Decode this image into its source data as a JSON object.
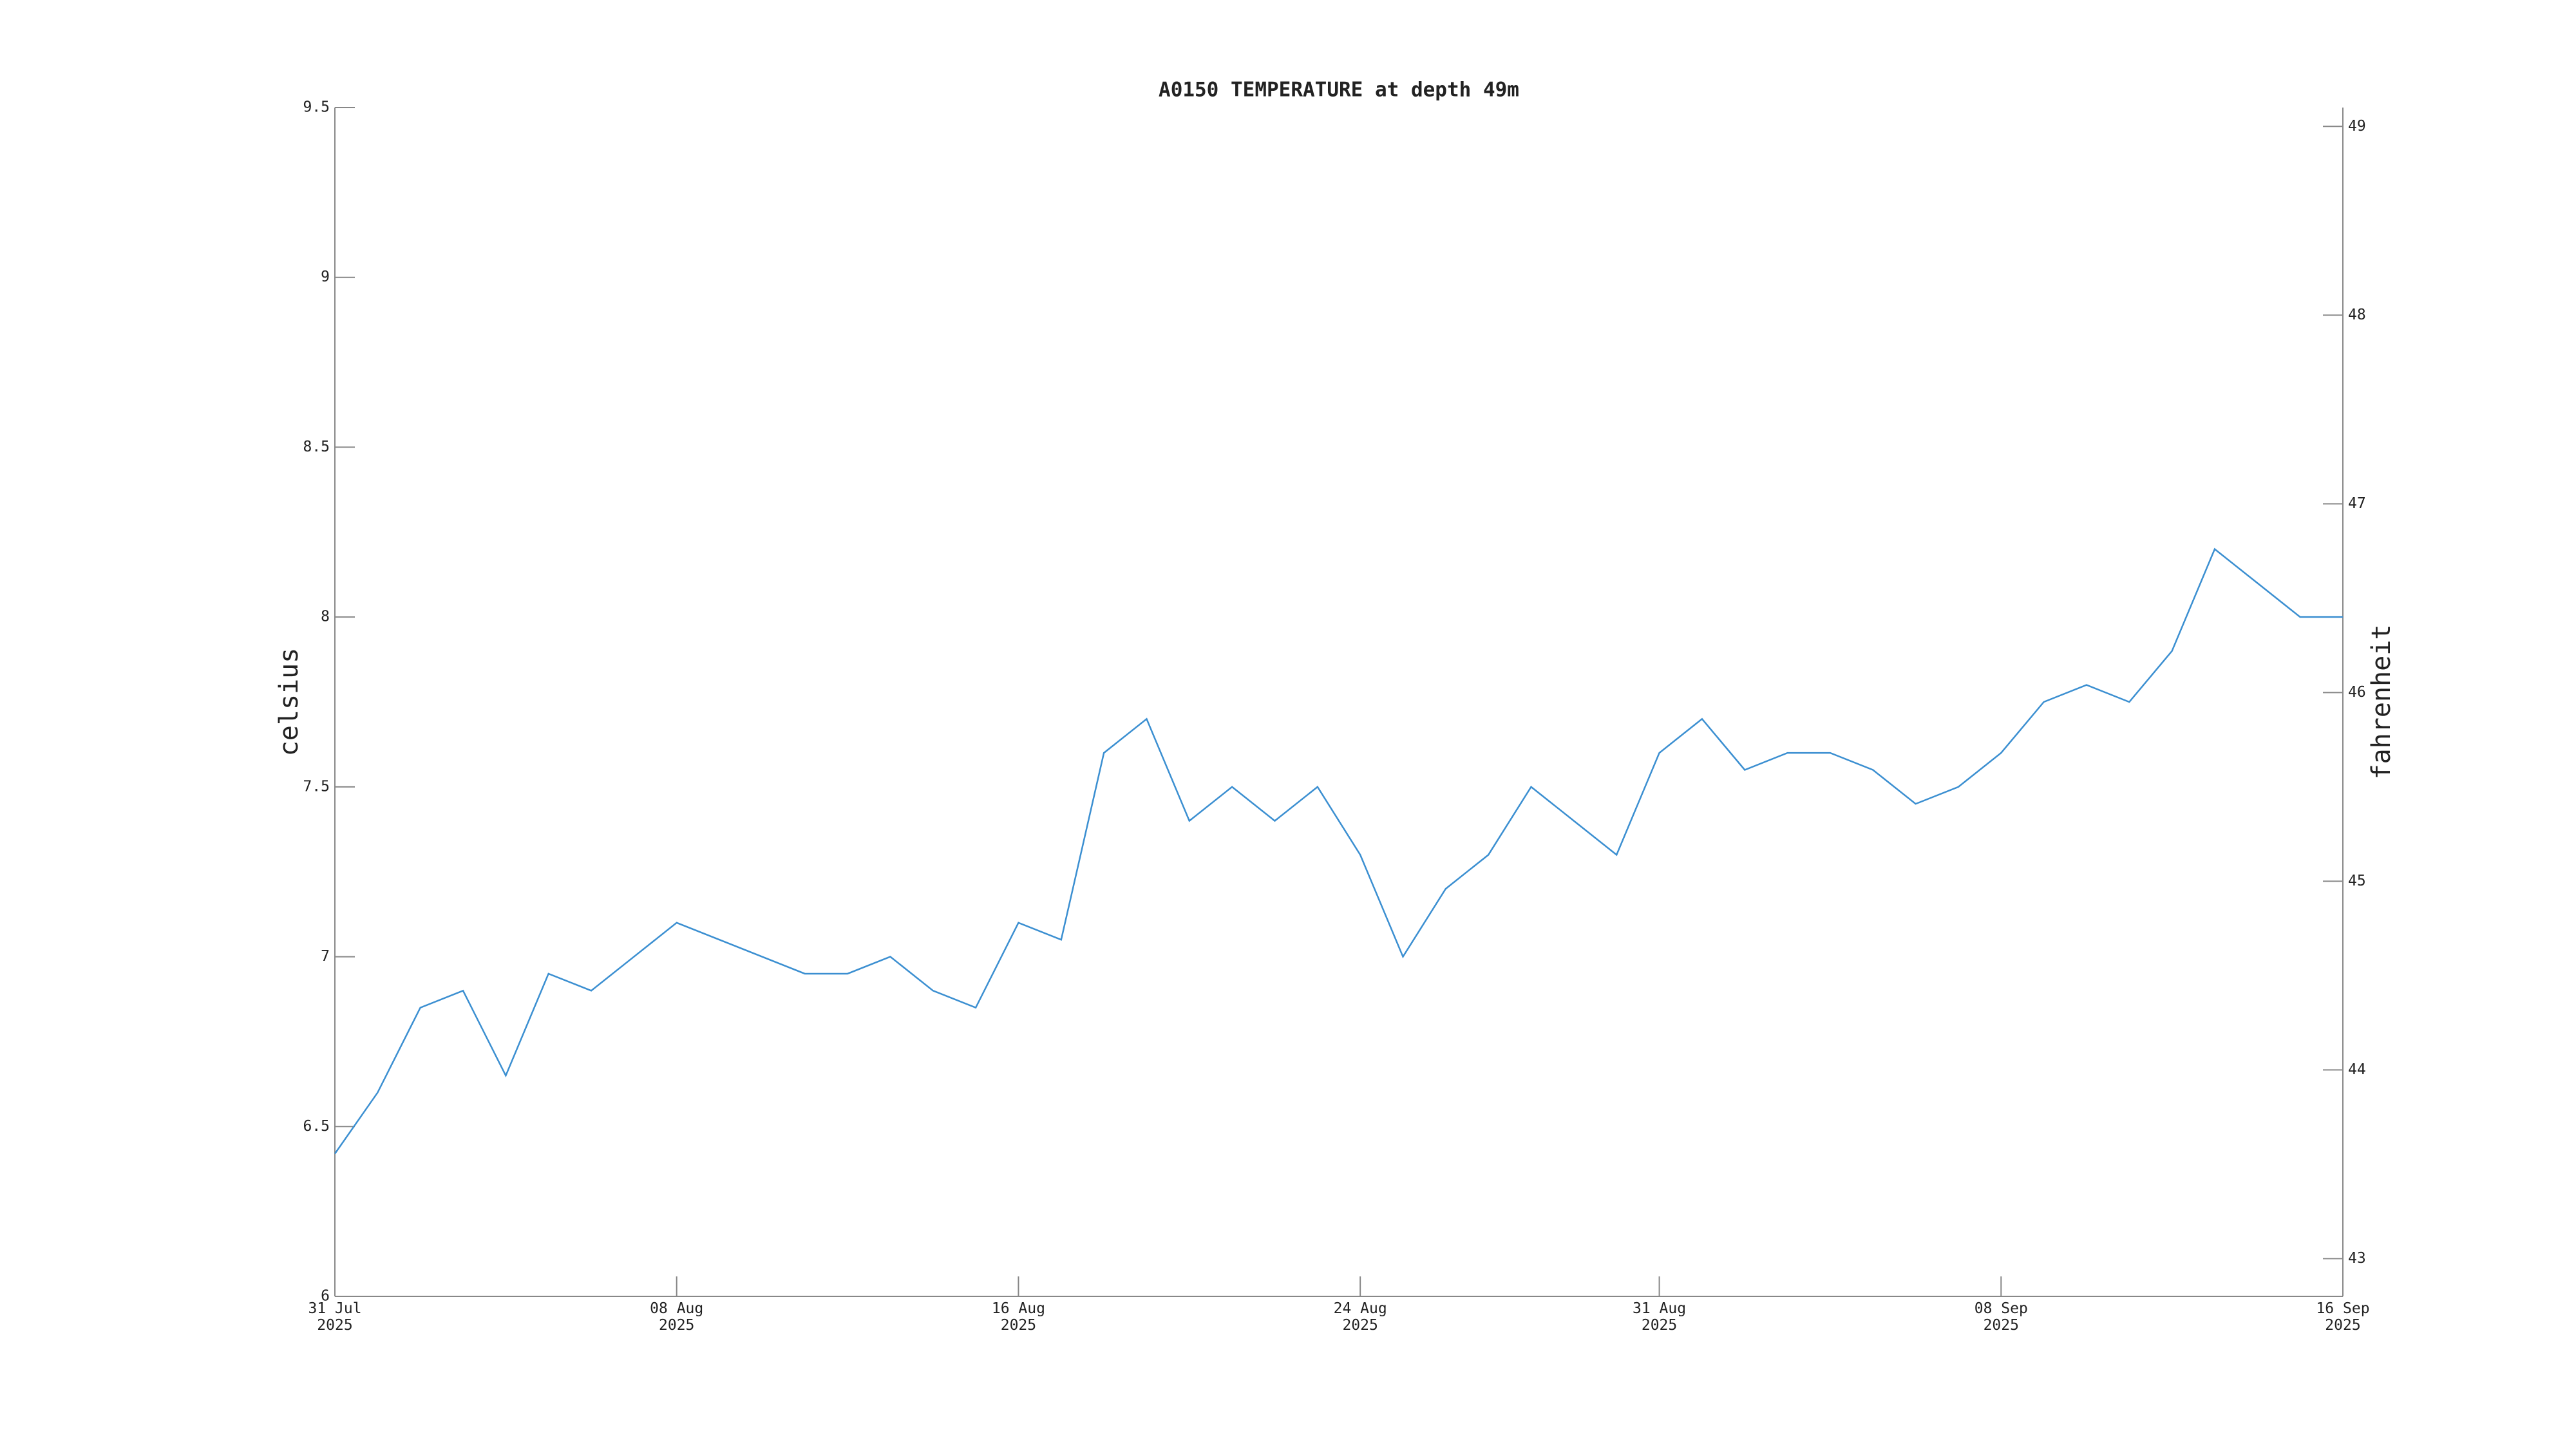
{
  "chart_data": {
    "type": "line",
    "title": "A0150 TEMPERATURE at depth 49m",
    "ylabel": "celsius",
    "y2label": "fahrenheit",
    "color": "#3b8fd1",
    "x": [
      "2025-07-31",
      "2025-08-01",
      "2025-08-02",
      "2025-08-03",
      "2025-08-04",
      "2025-08-05",
      "2025-08-06",
      "2025-08-07",
      "2025-08-08",
      "2025-08-09",
      "2025-08-10",
      "2025-08-11",
      "2025-08-12",
      "2025-08-13",
      "2025-08-14",
      "2025-08-15",
      "2025-08-16",
      "2025-08-17",
      "2025-08-18",
      "2025-08-19",
      "2025-08-20",
      "2025-08-21",
      "2025-08-22",
      "2025-08-23",
      "2025-08-24",
      "2025-08-25",
      "2025-08-26",
      "2025-08-27",
      "2025-08-28",
      "2025-08-29",
      "2025-08-30",
      "2025-08-31",
      "2025-09-01",
      "2025-09-02",
      "2025-09-03",
      "2025-09-04",
      "2025-09-05",
      "2025-09-06",
      "2025-09-07",
      "2025-09-08",
      "2025-09-09",
      "2025-09-10",
      "2025-09-11",
      "2025-09-12",
      "2025-09-13",
      "2025-09-14",
      "2025-09-15",
      "2025-09-16"
    ],
    "values": [
      6.42,
      6.6,
      6.85,
      6.9,
      6.65,
      6.95,
      6.9,
      7.0,
      7.1,
      7.05,
      7.0,
      6.95,
      6.95,
      7.0,
      6.9,
      6.85,
      7.1,
      7.05,
      7.6,
      7.7,
      7.4,
      7.5,
      7.4,
      7.5,
      7.3,
      7.0,
      7.2,
      7.3,
      7.5,
      7.4,
      7.3,
      7.6,
      7.7,
      7.55,
      7.6,
      7.6,
      7.55,
      7.45,
      7.5,
      7.6,
      7.75,
      7.8,
      7.75,
      7.9,
      8.2,
      8.1,
      8.0,
      8.0
    ],
    "xlim": [
      "2025-07-31",
      "2025-09-16"
    ],
    "xticks": [
      {
        "value": "2025-07-31",
        "label": "31 Jul\n2025"
      },
      {
        "value": "2025-08-08",
        "label": "08 Aug\n2025"
      },
      {
        "value": "2025-08-16",
        "label": "16 Aug\n2025"
      },
      {
        "value": "2025-08-24",
        "label": "24 Aug\n2025"
      },
      {
        "value": "2025-08-31",
        "label": "31 Aug\n2025"
      },
      {
        "value": "2025-09-08",
        "label": "08 Sep\n2025"
      },
      {
        "value": "2025-09-16",
        "label": "16 Sep\n2025"
      }
    ],
    "ylim": [
      6,
      9.5
    ],
    "yticks": [
      6,
      6.5,
      7,
      7.5,
      8,
      8.5,
      9,
      9.5
    ],
    "y2lim": [
      42.8,
      49.1
    ],
    "y2ticks": [
      43,
      44,
      45,
      46,
      47,
      48,
      49
    ]
  }
}
